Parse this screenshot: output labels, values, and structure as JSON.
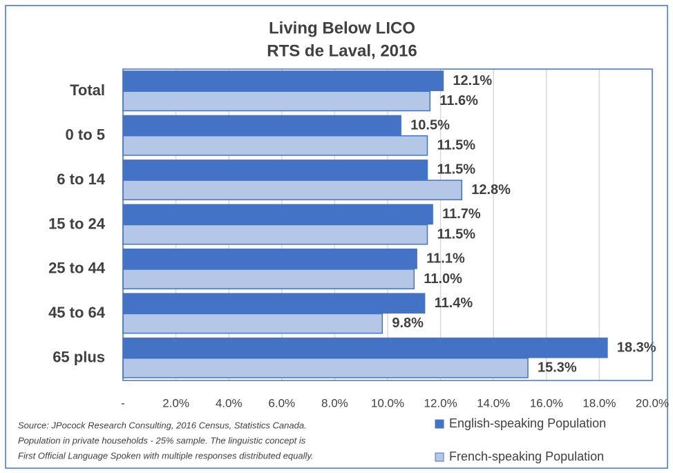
{
  "chart_data": {
    "type": "barh",
    "title": "Living Below LICO",
    "subtitle": "RTS de Laval, 2016",
    "categories": [
      "Total",
      "0 to 5",
      "6 to 14",
      "15 to 24",
      "25 to 44",
      "45 to 64",
      "65 plus"
    ],
    "series": [
      {
        "name": "English-speaking Population",
        "color": "#4472c4",
        "values": [
          12.1,
          10.5,
          11.5,
          11.7,
          11.1,
          11.4,
          18.3
        ],
        "value_labels": [
          "12.1%",
          "10.5%",
          "11.5%",
          "11.7%",
          "11.1%",
          "11.4%",
          "18.3%"
        ]
      },
      {
        "name": "French-speaking Population",
        "color": "#b4c7e7",
        "values": [
          11.6,
          11.5,
          12.8,
          11.5,
          11.0,
          9.8,
          15.3
        ],
        "value_labels": [
          "11.6%",
          "11.5%",
          "12.8%",
          "11.5%",
          "11.0%",
          "9.8%",
          "15.3%"
        ]
      }
    ],
    "xlim": [
      0,
      20
    ],
    "xticks": [
      {
        "value": 0,
        "label": "-"
      },
      {
        "value": 2,
        "label": "2.0%"
      },
      {
        "value": 4,
        "label": "4.0%"
      },
      {
        "value": 6,
        "label": "6.0%"
      },
      {
        "value": 8,
        "label": "8.0%"
      },
      {
        "value": 10,
        "label": "10.0%"
      },
      {
        "value": 12,
        "label": "12.0%"
      },
      {
        "value": 14,
        "label": "14.0%"
      },
      {
        "value": 16,
        "label": "16.0%"
      },
      {
        "value": 18,
        "label": "18.0%"
      },
      {
        "value": 20,
        "label": "20.0%"
      }
    ],
    "grid": true,
    "legend": "bottom-right",
    "source": [
      "Source: JPocock Research Consulting, 2016 Census, Statistics Canada.",
      "Population in private households - 25% sample. The linguistic concept is",
      "First Official Language Spoken with multiple responses distributed equally."
    ]
  }
}
